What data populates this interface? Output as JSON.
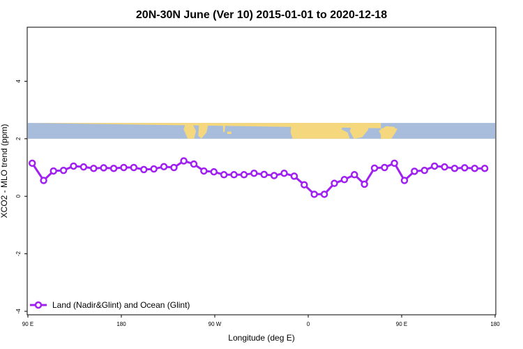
{
  "chart_data": {
    "type": "line",
    "title": "20N-30N June (Ver 10)   2015-01-01 to 2020-12-18",
    "xlabel": "Longitude (deg E)",
    "ylabel": "XCO2 - MLO trend (ppm)",
    "xlim": [
      -90,
      180
    ],
    "ylim": [
      -4,
      6
    ],
    "x_ticks": [
      {
        "value": -90,
        "label": "90 E"
      },
      {
        "value": -36,
        "label": "180"
      },
      {
        "value": 18,
        "label": "90 W"
      },
      {
        "value": 72,
        "label": "0"
      },
      {
        "value": 126,
        "label": "90 E"
      },
      {
        "value": 180,
        "label": "180"
      }
    ],
    "y_ticks": [
      {
        "value": -4,
        "label": "-4"
      },
      {
        "value": -2,
        "label": "-2"
      },
      {
        "value": 0,
        "label": "0"
      },
      {
        "value": 2,
        "label": "2"
      },
      {
        "value": 4,
        "label": "4"
      }
    ],
    "grid": false,
    "legend_position": "bottom-left",
    "map_band": {
      "y_range": [
        2.0,
        2.55
      ],
      "ocean_color": "#a7bddb",
      "land_color": "#f5d77e"
    },
    "series": [
      {
        "name": "Land (Nadir&Glint) and Ocean (Glint)",
        "color": "#a020f0",
        "x": [
          -87.5,
          -80.9,
          -75.2,
          -69.4,
          -63.6,
          -57.8,
          -52.0,
          -46.2,
          -40.4,
          -34.6,
          -28.8,
          -23.0,
          -17.2,
          -11.4,
          -5.6,
          0.1,
          5.9,
          11.7,
          17.5,
          23.3,
          29.1,
          34.9,
          40.7,
          46.5,
          52.3,
          58.1,
          63.9,
          69.7,
          75.5,
          81.3,
          87.1,
          92.9,
          98.7,
          104.5,
          110.3,
          116.1,
          121.8,
          127.6,
          133.4,
          139.2,
          145.0,
          150.8,
          156.6,
          162.4,
          168.2,
          174.0
        ],
        "y": [
          1.15,
          0.55,
          0.88,
          0.9,
          1.05,
          1.02,
          0.97,
          0.99,
          0.97,
          1.0,
          1.0,
          0.93,
          0.95,
          1.03,
          1.0,
          1.23,
          1.12,
          0.88,
          0.85,
          0.75,
          0.75,
          0.75,
          0.8,
          0.76,
          0.72,
          0.8,
          0.7,
          0.4,
          0.07,
          0.07,
          0.45,
          0.58,
          0.75,
          0.42,
          0.98,
          1.0,
          1.15,
          0.55,
          0.87,
          0.9,
          1.05,
          1.02,
          0.97,
          0.99,
          0.97,
          0.97
        ]
      }
    ]
  }
}
